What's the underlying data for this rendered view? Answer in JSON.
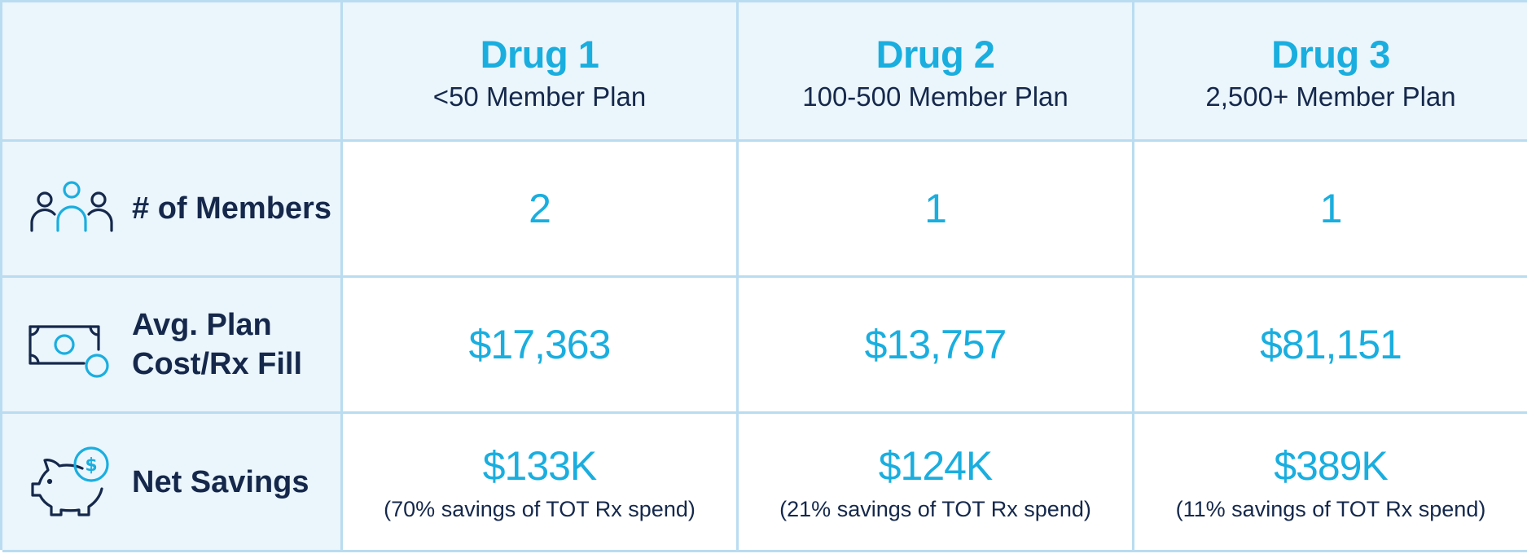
{
  "columns": [
    {
      "drug": "Drug 1",
      "plan": "<50 Member Plan"
    },
    {
      "drug": "Drug 2",
      "plan": "100-500 Member Plan"
    },
    {
      "drug": "Drug 3",
      "plan": "2,500+ Member Plan"
    }
  ],
  "rows": [
    {
      "label": "# of Members",
      "icon": "people-icon",
      "values": [
        "2",
        "1",
        "1"
      ]
    },
    {
      "label": "Avg. Plan Cost/Rx Fill",
      "icon": "money-icon",
      "values": [
        "$17,363",
        "$13,757",
        "$81,151"
      ]
    },
    {
      "label": "Net Savings",
      "icon": "piggy-bank-icon",
      "values": [
        "$133K",
        "$124K",
        "$389K"
      ],
      "subvalues": [
        "(70% savings of TOT Rx spend)",
        "(21% savings of TOT Rx spend)",
        "(11% savings of TOT Rx spend)"
      ]
    }
  ],
  "colors": {
    "accent": "#1aaedf",
    "text_dark": "#15284b",
    "shaded_bg": "#eaf5fc",
    "border": "#b9dcf0"
  }
}
